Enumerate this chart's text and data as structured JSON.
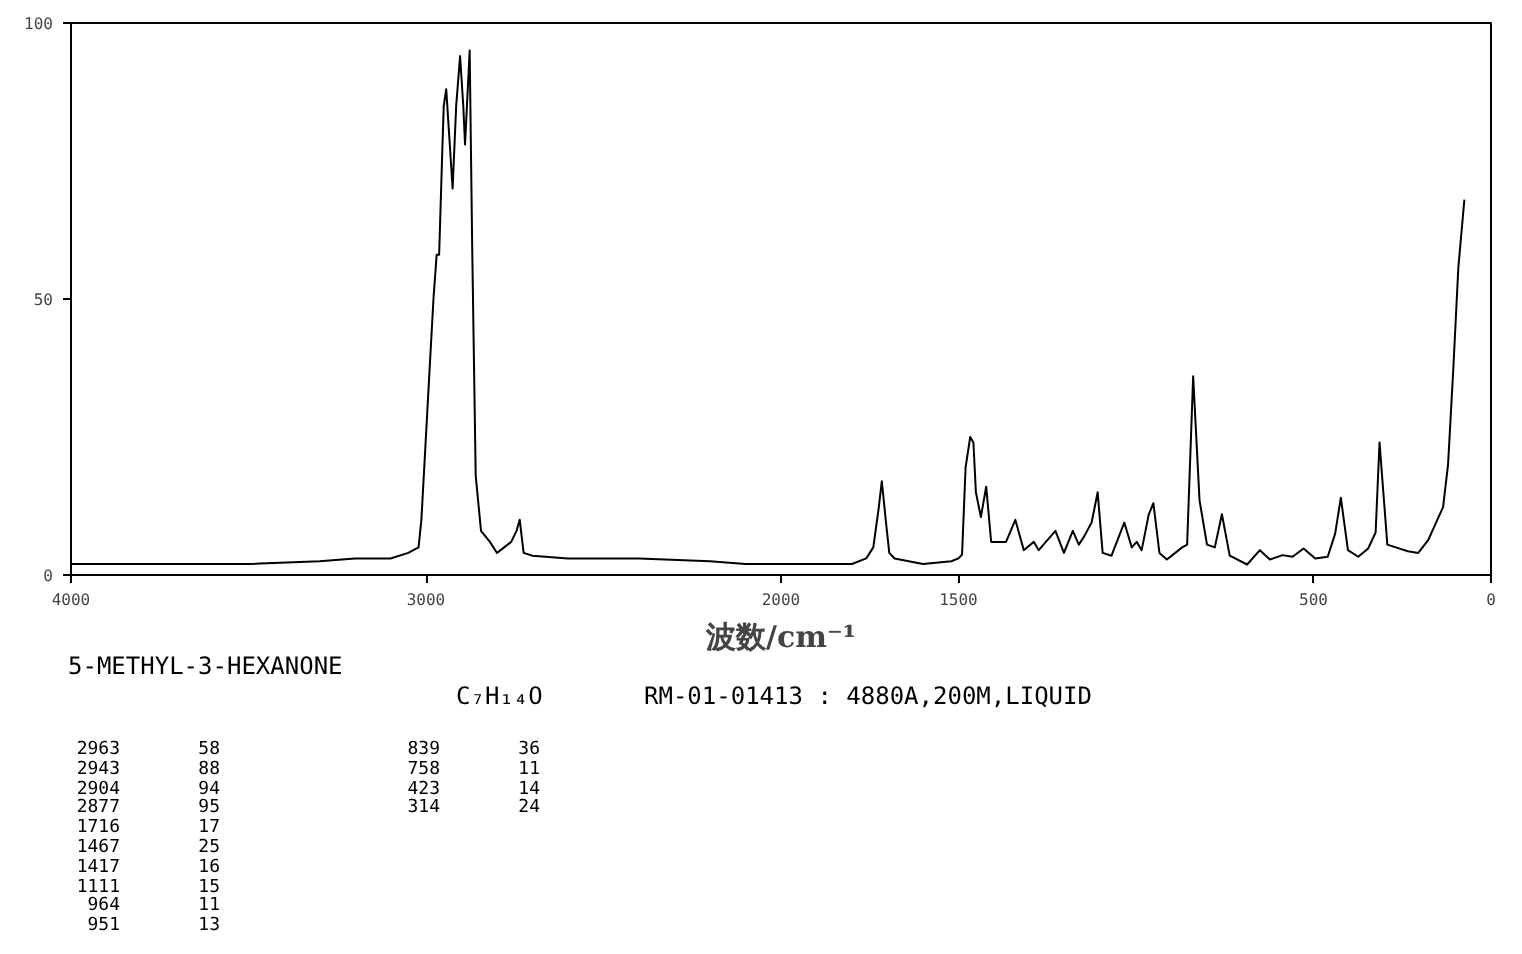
{
  "chart_data": {
    "type": "line",
    "title": "5-METHYL-3-HEXANONE",
    "xlabel": "波数/cm⁻¹",
    "annotations": [
      "C₇H₁₄O",
      "RM-01-01413 : 4880A,200M,LIQUID",
      "2963 58",
      "2943 88",
      "2904 94",
      "2877 95",
      "1716 17",
      "1467 25",
      "1417 16",
      "1111 15",
      "964 11",
      "951 13",
      "839 36",
      "758 11",
      "423 14",
      "314 24"
    ],
    "xlim": [
      4000,
      0
    ],
    "xticks": [
      4000,
      3000,
      2000,
      1500,
      500,
      0
    ],
    "ylim": [
      0,
      100
    ],
    "yticks": [
      0,
      50,
      100
    ],
    "grid": false,
    "marker": "none",
    "line_style": "solid",
    "series": [
      {
        "color": "#000000",
        "x": [
          4000,
          3700,
          3500,
          3300,
          3200,
          3100,
          3050,
          3021,
          3013,
          2996,
          2979,
          2970,
          2963,
          2955,
          2950,
          2943,
          2935,
          2925,
          2915,
          2904,
          2895,
          2890,
          2877,
          2870,
          2860,
          2845,
          2820,
          2800,
          2780,
          2760,
          2745,
          2736,
          2725,
          2700,
          2600,
          2400,
          2200,
          2100,
          2000,
          1800,
          1760,
          1740,
          1725,
          1716,
          1705,
          1695,
          1680,
          1600,
          1520,
          1500,
          1490,
          1480,
          1467,
          1458,
          1451,
          1437,
          1422,
          1408,
          1366,
          1340,
          1316,
          1288,
          1274,
          1227,
          1203,
          1178,
          1161,
          1146,
          1125,
          1108,
          1094,
          1069,
          1033,
          1012,
          998,
          984,
          964,
          951,
          934,
          913,
          870,
          856,
          839,
          821,
          800,
          778,
          758,
          736,
          687,
          651,
          623,
          587,
          559,
          528,
          495,
          460,
          439,
          423,
          403,
          374,
          346,
          325,
          314,
          292,
          268,
          234,
          205,
          177,
          156,
          135,
          121,
          106,
          92,
          75
        ],
        "values": [
          2,
          2,
          2,
          2.5,
          3,
          3,
          4,
          5,
          10,
          30,
          50,
          58,
          58,
          75,
          85,
          88,
          80,
          70,
          85,
          94,
          85,
          78,
          95,
          60,
          18,
          8,
          6,
          4,
          5,
          6,
          8,
          10,
          4,
          3.5,
          3,
          3,
          2.5,
          2,
          2,
          2,
          3,
          5,
          12,
          17,
          10,
          4,
          3,
          2,
          2.5,
          3,
          3.7,
          19.5,
          25,
          24,
          15,
          10.5,
          16,
          6,
          6,
          10,
          4.5,
          6,
          4.5,
          8,
          4,
          8,
          5.5,
          7,
          9.5,
          15,
          4,
          3.5,
          9.5,
          5,
          6,
          4.5,
          11,
          13,
          4,
          2.8,
          5,
          5.5,
          36,
          13.5,
          5.5,
          5,
          11,
          3.5,
          1.9,
          4.5,
          2.8,
          3.6,
          3.3,
          4.8,
          3,
          3.3,
          7.5,
          14,
          4.5,
          3.3,
          4.8,
          7.7,
          24,
          5.5,
          5,
          4.3,
          4,
          6.3,
          9.3,
          12.3,
          20,
          37.6,
          55.7,
          68
        ]
      }
    ]
  }
}
